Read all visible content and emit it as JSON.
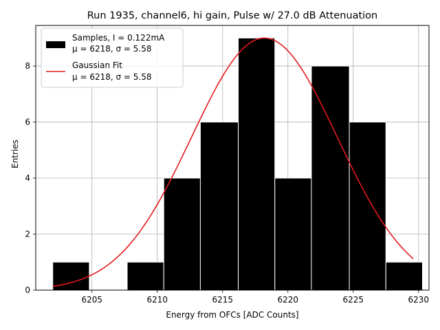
{
  "chart_data": {
    "type": "bar",
    "title": "Run 1935, channel6, hi gain, Pulse w/ 27.0 dB Attenuation",
    "xlabel": "Energy from OFCs [ADC Counts]",
    "ylabel": "Entries",
    "xlim": [
      6200.7,
      6230.8
    ],
    "ylim": [
      0,
      9.45
    ],
    "xticks": [
      6205,
      6210,
      6215,
      6220,
      6225,
      6230
    ],
    "yticks": [
      0,
      2,
      4,
      6,
      8
    ],
    "grid": true,
    "legend_position": "top-left",
    "histogram": {
      "name": "Samples, I = 0.122mA",
      "stats_label": "μ = 6218, σ = 5.58",
      "color": "#000000",
      "bin_edges": [
        6202.0,
        6204.8,
        6207.7,
        6210.5,
        6213.3,
        6216.2,
        6219.0,
        6221.8,
        6224.7,
        6227.5,
        6230.3
      ],
      "bins": [
        {
          "x0": 6202.0,
          "x1": 6204.8,
          "count": 1
        },
        {
          "x0": 6204.8,
          "x1": 6207.7,
          "count": 0
        },
        {
          "x0": 6207.7,
          "x1": 6210.5,
          "count": 1
        },
        {
          "x0": 6210.5,
          "x1": 6213.3,
          "count": 4
        },
        {
          "x0": 6213.3,
          "x1": 6216.2,
          "count": 6
        },
        {
          "x0": 6216.2,
          "x1": 6219.0,
          "count": 9
        },
        {
          "x0": 6219.0,
          "x1": 6221.8,
          "count": 4
        },
        {
          "x0": 6221.8,
          "x1": 6224.7,
          "count": 8
        },
        {
          "x0": 6224.7,
          "x1": 6227.5,
          "count": 6
        },
        {
          "x0": 6227.5,
          "x1": 6230.3,
          "count": 1
        }
      ]
    },
    "fit": {
      "name": "Gaussian Fit",
      "stats_label": "μ = 6218, σ = 5.58",
      "color": "#e41a1c",
      "mu": 6218.2,
      "sigma": 5.58,
      "amplitude": 9.0,
      "x_range": [
        6202.0,
        6229.6
      ]
    }
  }
}
